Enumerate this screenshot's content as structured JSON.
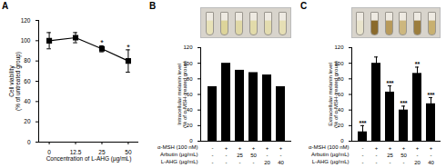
{
  "chart_data": [
    {
      "type": "line",
      "title": "A",
      "categories": [
        "0",
        "12.5",
        "25",
        "50"
      ],
      "values": [
        100,
        103,
        92,
        80
      ],
      "errors": [
        8,
        5,
        3,
        11
      ],
      "significance": [
        null,
        null,
        "*",
        "*"
      ],
      "x_label": "Concentration of L-AHG (µg/mL)",
      "y_label": "Cell viability\n(% of untreated group)",
      "ylim": [
        0,
        120
      ],
      "yticks": [
        0,
        20,
        40,
        60,
        80,
        100,
        120
      ],
      "color": "#000000",
      "marker": "square"
    },
    {
      "type": "bar",
      "title": "B",
      "categories": [
        null,
        null,
        null,
        null,
        null,
        null
      ],
      "values": [
        70,
        100,
        91,
        88,
        85,
        70
      ],
      "treatments": [
        {
          "name": "α-MSH (100 nM)",
          "values": [
            "-",
            "+",
            "+",
            "+",
            "+",
            "+"
          ]
        },
        {
          "name": "Arbutin (µg/mL)",
          "values": [
            "-",
            "-",
            "25",
            "50",
            "-",
            "-"
          ]
        },
        {
          "name": "L-AHG (µg/mL)",
          "values": [
            "-",
            "-",
            "-",
            "-",
            "20",
            "40"
          ]
        }
      ],
      "y_label": "Intracellular melanin level\n(% of α-MSH-treated group)",
      "ylim": [
        0,
        120
      ],
      "yticks": [
        0,
        20,
        40,
        60,
        80,
        100,
        120
      ],
      "color": "#000000"
    },
    {
      "type": "bar",
      "title": "C",
      "categories": [
        null,
        null,
        null,
        null,
        null,
        null
      ],
      "values": [
        12,
        100,
        63,
        40,
        87,
        48
      ],
      "errors": [
        8,
        8,
        8,
        5,
        8,
        8
      ],
      "significance": [
        "***",
        null,
        "***",
        "***",
        "**",
        "***"
      ],
      "treatments": [
        {
          "name": "α-MSH (100 nM)",
          "values": [
            "-",
            "+",
            "+",
            "+",
            "+",
            "+"
          ]
        },
        {
          "name": "Arbutin (µg/mL)",
          "values": [
            "-",
            "-",
            "25",
            "50",
            "-",
            "-"
          ]
        },
        {
          "name": "L-AHG (µg/mL)",
          "values": [
            "-",
            "-",
            "-",
            "-",
            "20",
            "40"
          ]
        }
      ],
      "y_label": "Extracellular melanin level\n(% of α-MSH-treated group)",
      "ylim": [
        0,
        120
      ],
      "yticks": [
        0,
        20,
        40,
        60,
        80,
        100,
        120
      ],
      "color": "#000000"
    }
  ]
}
